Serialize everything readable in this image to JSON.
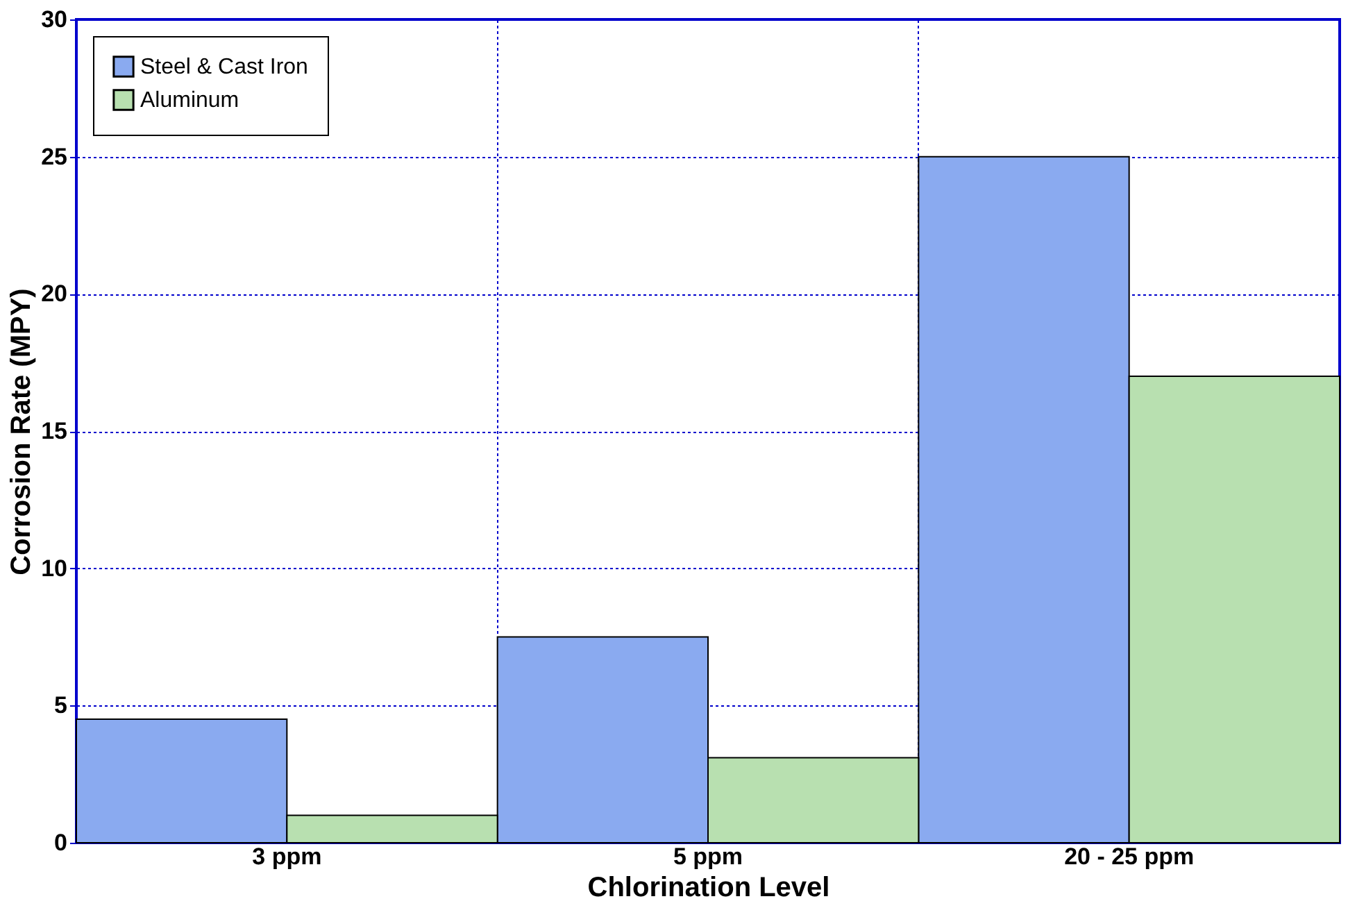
{
  "chart_data": {
    "type": "bar",
    "xlabel": "Chlorination Level",
    "ylabel": "Corrosion Rate (MPY)",
    "categories": [
      "3 ppm",
      "5 ppm",
      "20 - 25 ppm"
    ],
    "series": [
      {
        "name": "Steel & Cast Iron",
        "color": "#8aaaf0",
        "values": [
          4.5,
          7.5,
          25
        ]
      },
      {
        "name": "Aluminum",
        "color": "#b8e0b0",
        "values": [
          1.0,
          3.1,
          17
        ]
      }
    ],
    "ylim": [
      0,
      30
    ],
    "yticks": [
      0,
      5,
      10,
      15,
      20,
      25,
      30
    ],
    "grid": true,
    "legend": "top left"
  }
}
